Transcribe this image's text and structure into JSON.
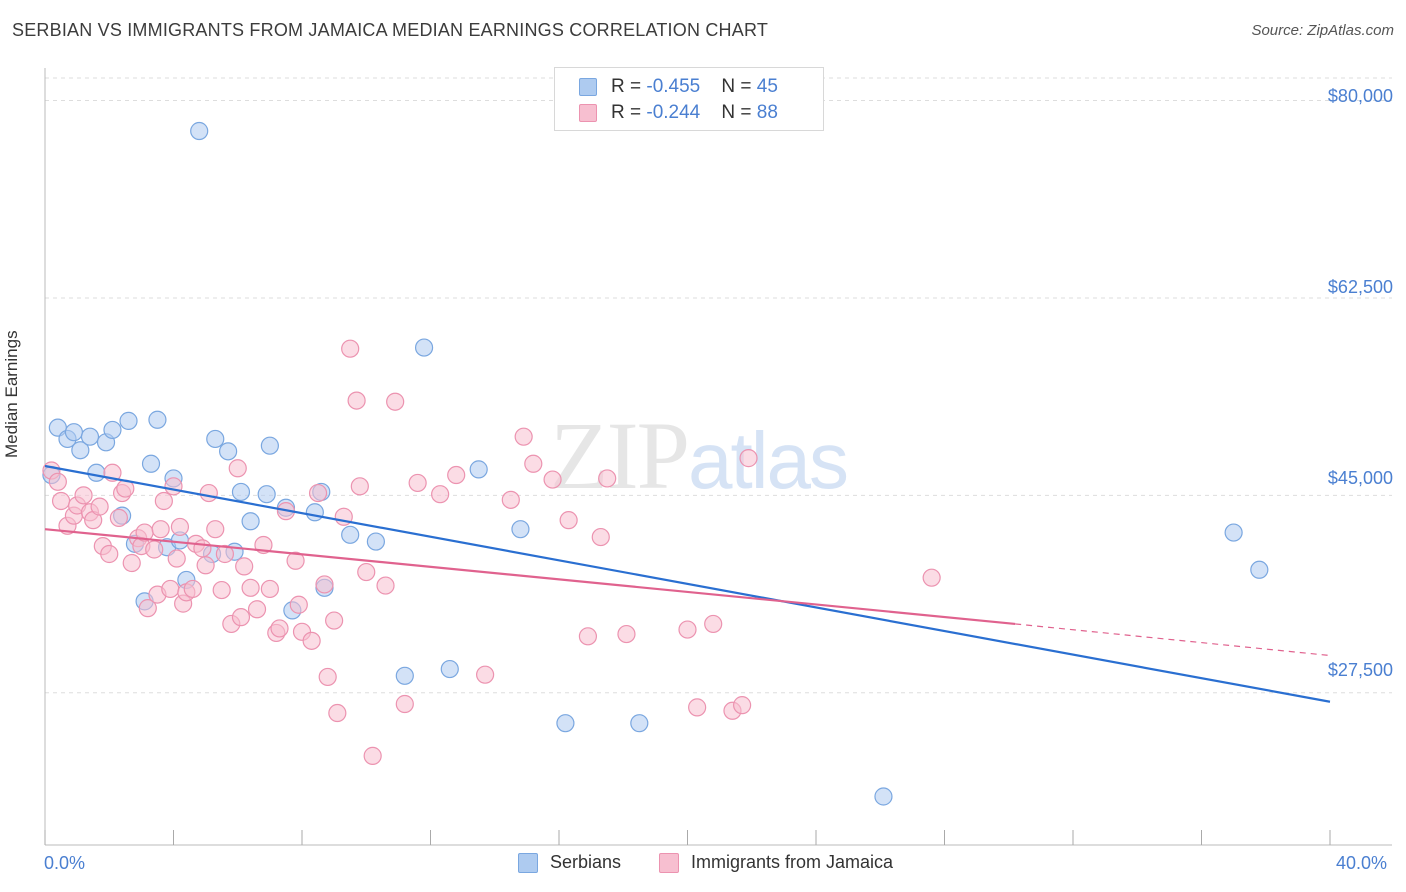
{
  "title": "SERBIAN VS IMMIGRANTS FROM JAMAICA MEDIAN EARNINGS CORRELATION CHART",
  "source": "Source: ZipAtlas.com",
  "watermark": {
    "zip": "ZIP",
    "atlas": "atlas"
  },
  "colors": {
    "serbians_fill": "#aecbf0",
    "serbians_stroke": "#7aa7e0",
    "serbians_line": "#2a6fd1",
    "jamaica_fill": "#f7bfd0",
    "jamaica_stroke": "#ec93b0",
    "jamaica_line": "#e0628e",
    "tick_text": "#4a7fd1",
    "grid": "#dddddd"
  },
  "legend": {
    "serbians": {
      "r_label": "R = ",
      "r_value": "-0.455",
      "n_label": "N = ",
      "n_value": "45"
    },
    "jamaica": {
      "r_label": "R = ",
      "r_value": "-0.244",
      "n_label": "N = ",
      "n_value": "88"
    }
  },
  "bottom_legend": {
    "serbians": "Serbians",
    "jamaica": "Immigrants from Jamaica"
  },
  "chart_data": {
    "type": "scatter",
    "ylabel": "Median Earnings",
    "xlim": [
      0,
      40
    ],
    "ylim": [
      14000,
      82000
    ],
    "x_tick_labels": {
      "left": "0.0%",
      "right": "40.0%"
    },
    "y_ticks": [
      {
        "value": 80000,
        "label": "$80,000"
      },
      {
        "value": 62500,
        "label": "$62,500"
      },
      {
        "value": 45000,
        "label": "$45,000"
      },
      {
        "value": 27500,
        "label": "$27,500"
      }
    ],
    "grid": true,
    "series": [
      {
        "name": "Serbians",
        "trend": {
          "x": [
            0,
            40
          ],
          "y": [
            47600,
            26700
          ]
        },
        "points": [
          [
            0.2,
            46800
          ],
          [
            0.4,
            51000
          ],
          [
            0.7,
            50000
          ],
          [
            0.9,
            50600
          ],
          [
            1.1,
            49000
          ],
          [
            1.4,
            50200
          ],
          [
            1.6,
            47000
          ],
          [
            1.9,
            49700
          ],
          [
            2.1,
            50800
          ],
          [
            2.4,
            43200
          ],
          [
            2.6,
            51600
          ],
          [
            2.8,
            40700
          ],
          [
            3.1,
            35600
          ],
          [
            3.3,
            47800
          ],
          [
            3.5,
            51700
          ],
          [
            3.8,
            40400
          ],
          [
            4.0,
            46500
          ],
          [
            4.2,
            41000
          ],
          [
            4.4,
            37500
          ],
          [
            4.8,
            77300
          ],
          [
            5.2,
            39800
          ],
          [
            5.3,
            50000
          ],
          [
            5.7,
            48900
          ],
          [
            5.9,
            40000
          ],
          [
            6.1,
            45300
          ],
          [
            6.4,
            42700
          ],
          [
            6.9,
            45100
          ],
          [
            7.0,
            49400
          ],
          [
            7.5,
            43900
          ],
          [
            7.7,
            34800
          ],
          [
            8.4,
            43500
          ],
          [
            8.6,
            45300
          ],
          [
            8.7,
            36800
          ],
          [
            9.5,
            41500
          ],
          [
            10.3,
            40900
          ],
          [
            11.2,
            29000
          ],
          [
            11.8,
            58100
          ],
          [
            12.6,
            29600
          ],
          [
            13.5,
            47300
          ],
          [
            14.8,
            42000
          ],
          [
            16.2,
            24800
          ],
          [
            18.5,
            24800
          ],
          [
            26.1,
            18300
          ],
          [
            37.0,
            41700
          ],
          [
            37.8,
            38400
          ]
        ]
      },
      {
        "name": "Immigrants from Jamaica",
        "trend": {
          "x": [
            0,
            30.2
          ],
          "y": [
            42000,
            33600
          ]
        },
        "trend_dashed": {
          "x": [
            30.2,
            40
          ],
          "y": [
            33600,
            30800
          ]
        },
        "points": [
          [
            0.2,
            47200
          ],
          [
            0.4,
            46200
          ],
          [
            0.5,
            44500
          ],
          [
            0.7,
            42300
          ],
          [
            0.9,
            43200
          ],
          [
            1.0,
            44100
          ],
          [
            1.2,
            45000
          ],
          [
            1.4,
            43500
          ],
          [
            1.5,
            42800
          ],
          [
            1.7,
            44000
          ],
          [
            1.8,
            40500
          ],
          [
            2.0,
            39800
          ],
          [
            2.1,
            47000
          ],
          [
            2.3,
            43000
          ],
          [
            2.4,
            45200
          ],
          [
            2.5,
            45600
          ],
          [
            2.7,
            39000
          ],
          [
            2.9,
            41200
          ],
          [
            3.0,
            40500
          ],
          [
            3.1,
            41700
          ],
          [
            3.2,
            35000
          ],
          [
            3.4,
            40200
          ],
          [
            3.5,
            36200
          ],
          [
            3.6,
            42000
          ],
          [
            3.7,
            44500
          ],
          [
            3.9,
            36700
          ],
          [
            4.0,
            45800
          ],
          [
            4.1,
            39400
          ],
          [
            4.2,
            42200
          ],
          [
            4.3,
            35400
          ],
          [
            4.4,
            36400
          ],
          [
            4.6,
            36700
          ],
          [
            4.7,
            40700
          ],
          [
            4.9,
            40300
          ],
          [
            5.0,
            38800
          ],
          [
            5.1,
            45200
          ],
          [
            5.3,
            42000
          ],
          [
            5.5,
            36600
          ],
          [
            5.6,
            39800
          ],
          [
            5.8,
            33600
          ],
          [
            6.0,
            47400
          ],
          [
            6.1,
            34200
          ],
          [
            6.2,
            38700
          ],
          [
            6.4,
            36800
          ],
          [
            6.6,
            34900
          ],
          [
            6.8,
            40600
          ],
          [
            7.0,
            36700
          ],
          [
            7.2,
            32800
          ],
          [
            7.3,
            33200
          ],
          [
            7.5,
            43600
          ],
          [
            7.8,
            39200
          ],
          [
            7.9,
            35300
          ],
          [
            8.0,
            32900
          ],
          [
            8.3,
            32100
          ],
          [
            8.5,
            45200
          ],
          [
            8.7,
            37100
          ],
          [
            8.8,
            28900
          ],
          [
            9.0,
            33900
          ],
          [
            9.1,
            25700
          ],
          [
            9.3,
            43100
          ],
          [
            9.5,
            58000
          ],
          [
            9.7,
            53400
          ],
          [
            9.8,
            45800
          ],
          [
            10.0,
            38200
          ],
          [
            10.2,
            21900
          ],
          [
            10.6,
            37000
          ],
          [
            10.9,
            53300
          ],
          [
            11.2,
            26500
          ],
          [
            11.6,
            46100
          ],
          [
            12.3,
            45100
          ],
          [
            12.8,
            46800
          ],
          [
            13.7,
            29100
          ],
          [
            14.5,
            44600
          ],
          [
            14.9,
            50200
          ],
          [
            15.2,
            47800
          ],
          [
            15.8,
            46400
          ],
          [
            16.3,
            42800
          ],
          [
            16.9,
            32500
          ],
          [
            17.3,
            41300
          ],
          [
            17.5,
            46500
          ],
          [
            18.1,
            32700
          ],
          [
            20.0,
            33100
          ],
          [
            20.3,
            26200
          ],
          [
            20.8,
            33600
          ],
          [
            21.4,
            25900
          ],
          [
            21.7,
            26400
          ],
          [
            21.9,
            48300
          ],
          [
            27.6,
            37700
          ]
        ]
      }
    ]
  }
}
